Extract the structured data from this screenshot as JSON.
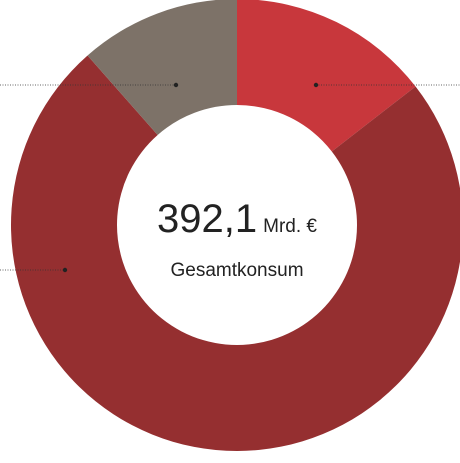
{
  "chart_data": {
    "type": "donut",
    "center_value": "392,1",
    "center_unit": "Mrd. €",
    "center_label": "Gesamtkonsum",
    "categories": [
      null,
      null,
      null
    ],
    "values": [
      14.5,
      74,
      11.5
    ],
    "colors": [
      "#c8373c",
      "#952f30",
      "#7d7268"
    ]
  }
}
